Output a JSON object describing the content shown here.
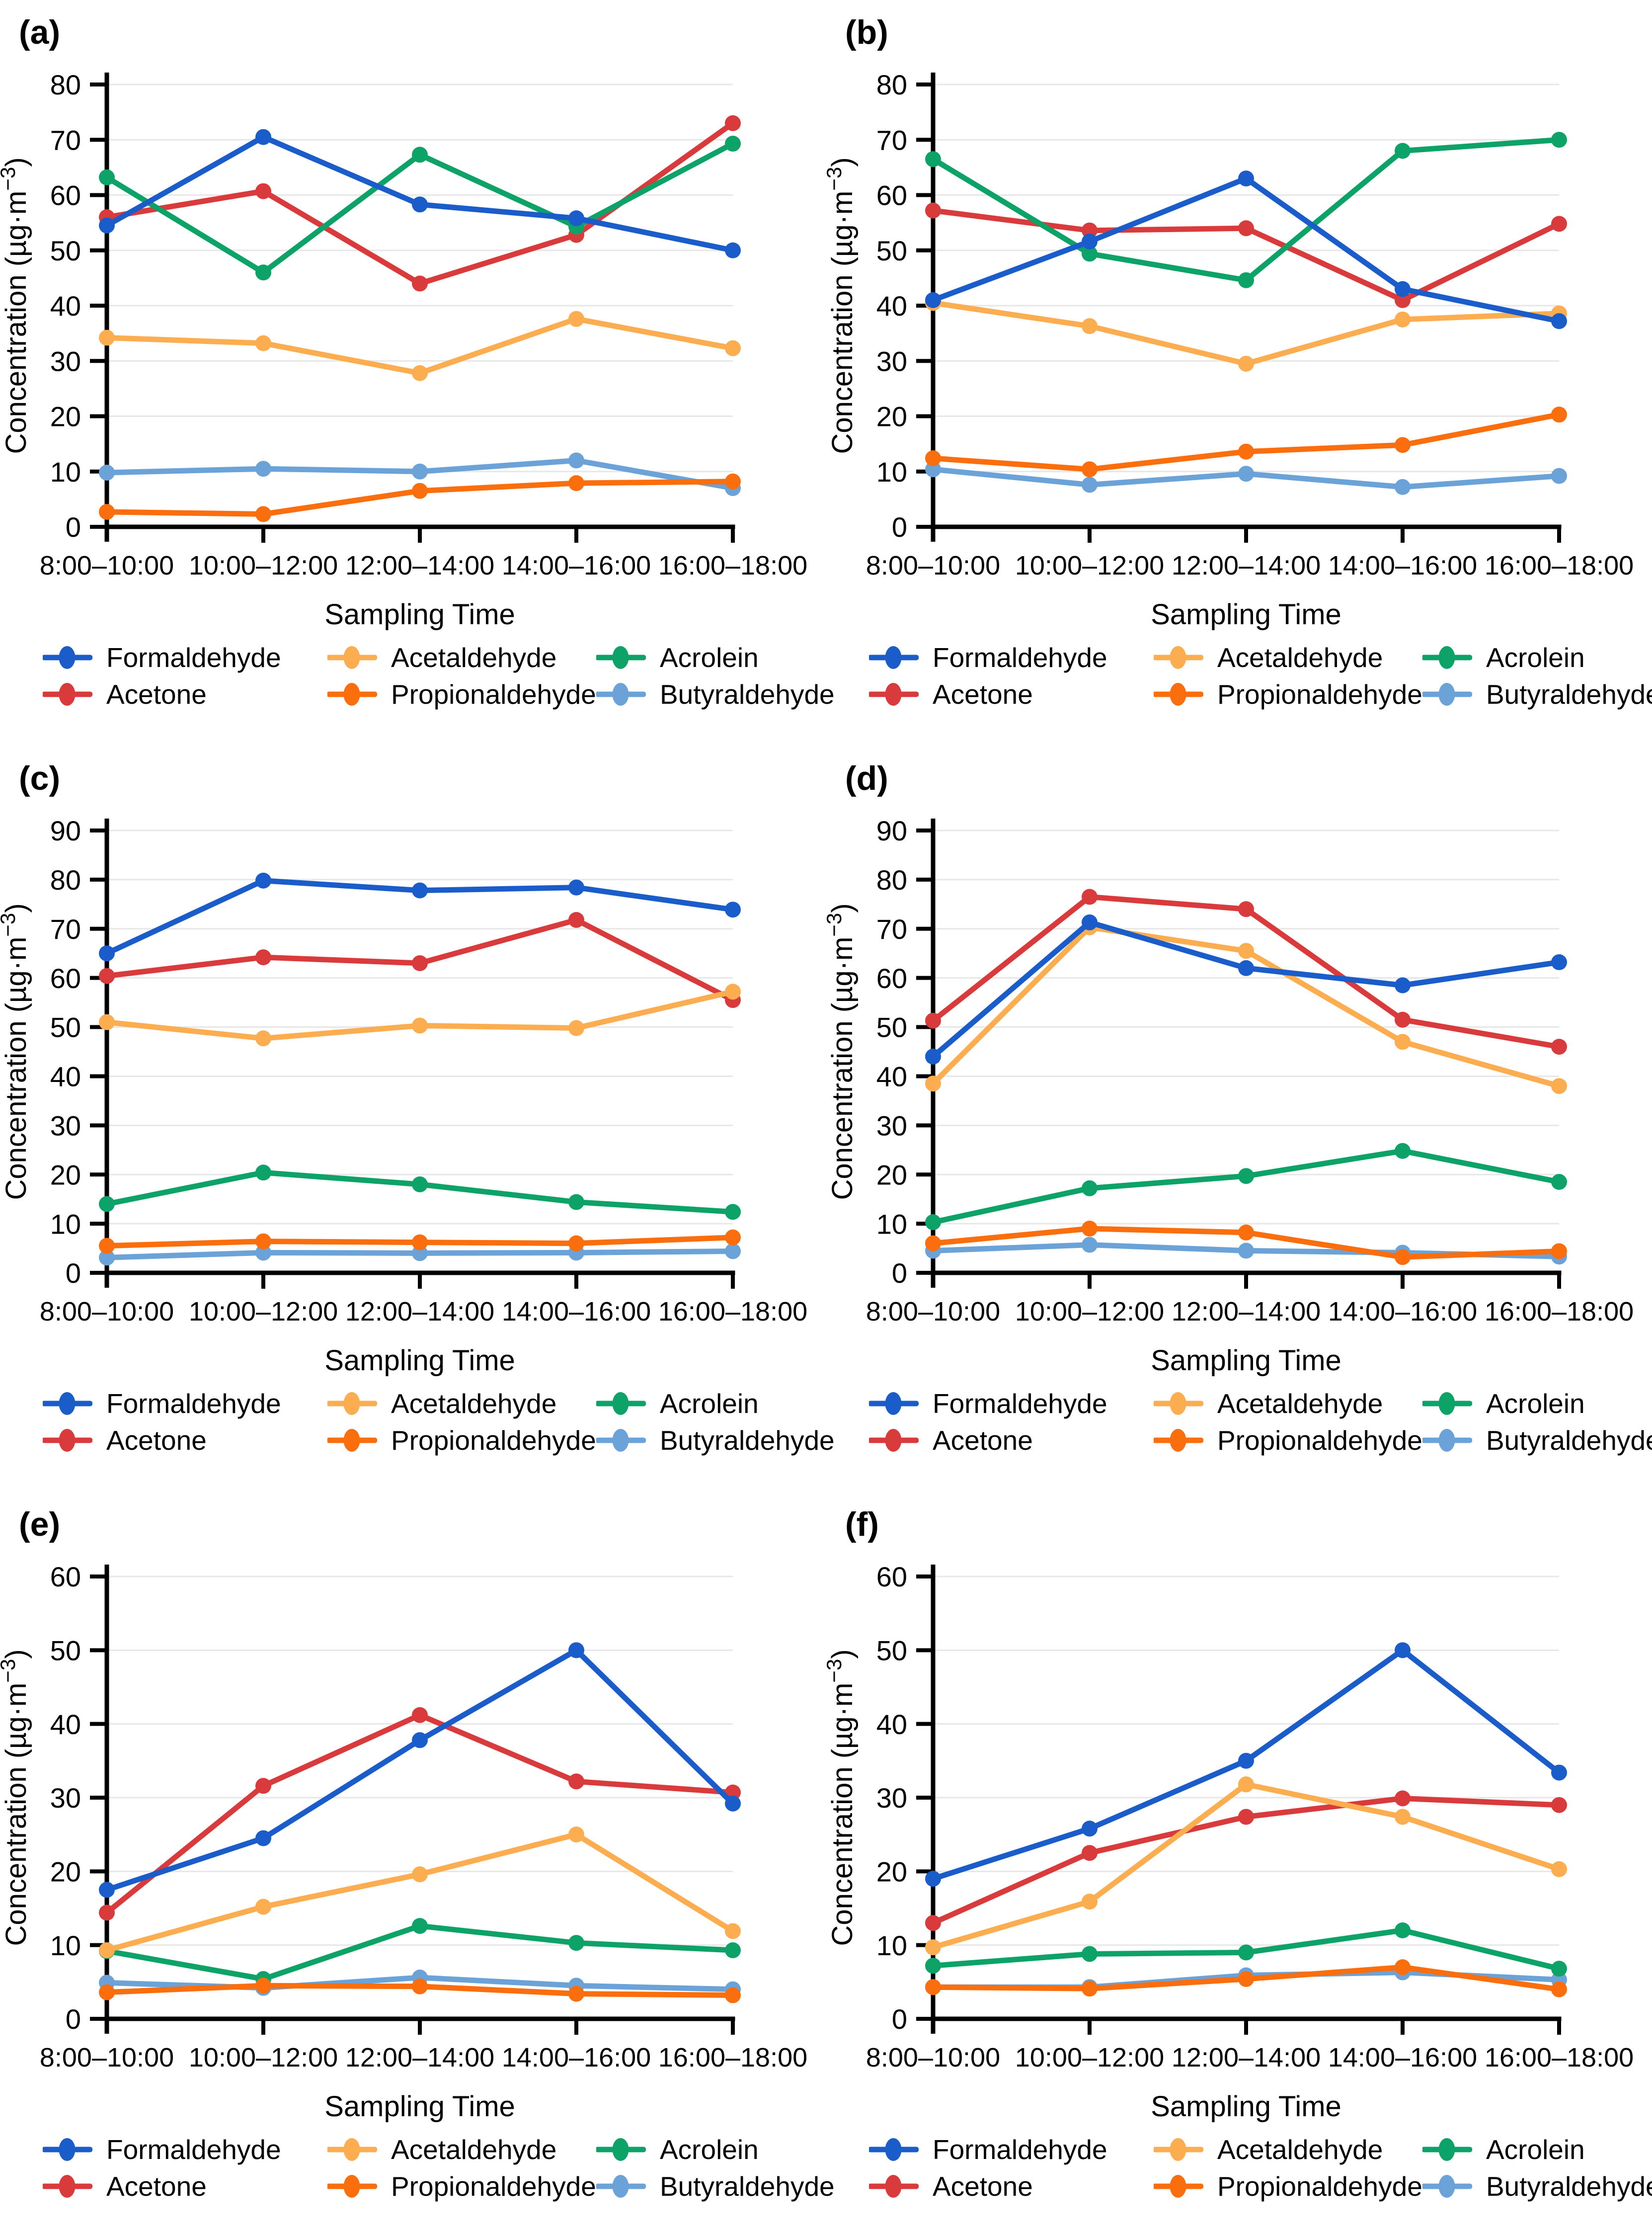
{
  "figure": {
    "background": "#ffffff",
    "x_axis_title": "Sampling Time",
    "y_axis_title": "Concentration (µg·m⁻³)",
    "y_axis_title_pre": "Concentration (µg·m",
    "y_axis_title_sup": "−3",
    "y_axis_title_post": ")",
    "legend_labels": [
      "Formaldehyde",
      "Acetaldehyde",
      "Acrolein",
      "Acetone",
      "Propionaldehyde",
      "Butyraldehyde"
    ],
    "colors": {
      "Formaldehyde": "#1A5CC9",
      "Acetaldehyde": "#FBAD50",
      "Acrolein": "#0DA368",
      "Acetone": "#D93B3C",
      "Propionaldehyde": "#FA6E0E",
      "Butyraldehyde": "#6BA3D9"
    },
    "grid_color": "#E7E7E7",
    "axis_color": "#000000",
    "draw_order": [
      "Butyraldehyde",
      "Acetone",
      "Acrolein",
      "Acetaldehyde",
      "Propionaldehyde",
      "Formaldehyde"
    ]
  },
  "chart_data": [
    {
      "type": "line",
      "panel_label": "(a)",
      "categories": [
        "8:00–10:00",
        "10:00–12:00",
        "12:00–14:00",
        "14:00–16:00",
        "16:00–18:00"
      ],
      "xlabel": "Sampling Time",
      "ylabel": "Concentration (µg·m⁻³)",
      "ylim": [
        0,
        80
      ],
      "ytick_step": 10,
      "grid": true,
      "legend_position": "bottom",
      "series": [
        {
          "name": "Formaldehyde",
          "values": [
            54.5,
            70.5,
            58.3,
            55.8,
            50.0
          ]
        },
        {
          "name": "Acetaldehyde",
          "values": [
            34.2,
            33.2,
            27.8,
            37.6,
            32.3
          ]
        },
        {
          "name": "Acrolein",
          "values": [
            63.2,
            46.0,
            67.3,
            54.3,
            69.3
          ]
        },
        {
          "name": "Acetone",
          "values": [
            56.0,
            60.7,
            44.0,
            52.8,
            73.0
          ]
        },
        {
          "name": "Propionaldehyde",
          "values": [
            2.7,
            2.3,
            6.5,
            7.9,
            8.2
          ]
        },
        {
          "name": "Butyraldehyde",
          "values": [
            9.8,
            10.5,
            10.0,
            12.0,
            7.0
          ]
        }
      ]
    },
    {
      "type": "line",
      "panel_label": "(b)",
      "categories": [
        "8:00–10:00",
        "10:00–12:00",
        "12:00–14:00",
        "14:00–16:00",
        "16:00–18:00"
      ],
      "xlabel": "Sampling Time",
      "ylabel": "Concentration (µg·m⁻³)",
      "ylim": [
        0,
        80
      ],
      "ytick_step": 10,
      "grid": true,
      "legend_position": "bottom",
      "series": [
        {
          "name": "Formaldehyde",
          "values": [
            41.0,
            51.6,
            63.0,
            43.0,
            37.2
          ]
        },
        {
          "name": "Acetaldehyde",
          "values": [
            40.5,
            36.3,
            29.5,
            37.5,
            38.6
          ]
        },
        {
          "name": "Acrolein",
          "values": [
            66.5,
            49.4,
            44.6,
            68.0,
            70.0
          ]
        },
        {
          "name": "Acetone",
          "values": [
            57.2,
            53.6,
            54.0,
            41.0,
            54.8
          ]
        },
        {
          "name": "Propionaldehyde",
          "values": [
            12.4,
            10.4,
            13.6,
            14.8,
            20.3
          ]
        },
        {
          "name": "Butyraldehyde",
          "values": [
            10.4,
            7.6,
            9.6,
            7.2,
            9.2
          ]
        }
      ]
    },
    {
      "type": "line",
      "panel_label": "(c)",
      "categories": [
        "8:00–10:00",
        "10:00–12:00",
        "12:00–14:00",
        "14:00–16:00",
        "16:00–18:00"
      ],
      "xlabel": "Sampling Time",
      "ylabel": "Concentration (µg·m⁻³)",
      "ylim": [
        0,
        90
      ],
      "ytick_step": 10,
      "grid": true,
      "legend_position": "bottom",
      "series": [
        {
          "name": "Formaldehyde",
          "values": [
            65.0,
            79.8,
            77.8,
            78.4,
            73.9
          ]
        },
        {
          "name": "Acetaldehyde",
          "values": [
            51.0,
            47.7,
            50.3,
            49.8,
            57.2
          ]
        },
        {
          "name": "Acrolein",
          "values": [
            14.0,
            20.4,
            18.0,
            14.4,
            12.4
          ]
        },
        {
          "name": "Acetone",
          "values": [
            60.4,
            64.2,
            63.0,
            71.8,
            55.5
          ]
        },
        {
          "name": "Propionaldehyde",
          "values": [
            5.5,
            6.4,
            6.2,
            6.0,
            7.2
          ]
        },
        {
          "name": "Butyraldehyde",
          "values": [
            3.1,
            4.1,
            4.0,
            4.1,
            4.4
          ]
        }
      ]
    },
    {
      "type": "line",
      "panel_label": "(d)",
      "categories": [
        "8:00–10:00",
        "10:00–12:00",
        "12:00–14:00",
        "14:00–16:00",
        "16:00–18:00"
      ],
      "xlabel": "Sampling Time",
      "ylabel": "Concentration (µg·m⁻³)",
      "ylim": [
        0,
        90
      ],
      "ytick_step": 10,
      "grid": true,
      "legend_position": "bottom",
      "series": [
        {
          "name": "Formaldehyde",
          "values": [
            44.0,
            71.3,
            62.0,
            58.5,
            63.2
          ]
        },
        {
          "name": "Acetaldehyde",
          "values": [
            38.5,
            70.3,
            65.5,
            47.0,
            38.0
          ]
        },
        {
          "name": "Acrolein",
          "values": [
            10.3,
            17.2,
            19.7,
            24.8,
            18.5
          ]
        },
        {
          "name": "Acetone",
          "values": [
            51.3,
            76.5,
            74.0,
            51.5,
            46.0
          ]
        },
        {
          "name": "Propionaldehyde",
          "values": [
            6.0,
            9.0,
            8.2,
            3.2,
            4.4
          ]
        },
        {
          "name": "Butyraldehyde",
          "values": [
            4.5,
            5.7,
            4.5,
            4.1,
            3.3
          ]
        }
      ]
    },
    {
      "type": "line",
      "panel_label": "(e)",
      "categories": [
        "8:00–10:00",
        "10:00–12:00",
        "12:00–14:00",
        "14:00–16:00",
        "16:00–18:00"
      ],
      "xlabel": "Sampling Time",
      "ylabel": "Concentration (µg·m⁻³)",
      "ylim": [
        0,
        60
      ],
      "ytick_step": 10,
      "grid": true,
      "legend_position": "bottom",
      "series": [
        {
          "name": "Formaldehyde",
          "values": [
            17.5,
            24.5,
            37.8,
            50.0,
            29.2
          ]
        },
        {
          "name": "Acetaldehyde",
          "values": [
            9.3,
            15.2,
            19.6,
            25.0,
            11.9
          ]
        },
        {
          "name": "Acrolein",
          "values": [
            9.2,
            5.4,
            12.6,
            10.3,
            9.3
          ]
        },
        {
          "name": "Acetone",
          "values": [
            14.4,
            31.6,
            41.2,
            32.2,
            30.7
          ]
        },
        {
          "name": "Propionaldehyde",
          "values": [
            3.6,
            4.5,
            4.4,
            3.4,
            3.2
          ]
        },
        {
          "name": "Butyraldehyde",
          "values": [
            4.9,
            4.2,
            5.6,
            4.5,
            4.0
          ]
        }
      ]
    },
    {
      "type": "line",
      "panel_label": "(f)",
      "categories": [
        "8:00–10:00",
        "10:00–12:00",
        "12:00–14:00",
        "14:00–16:00",
        "16:00–18:00"
      ],
      "xlabel": "Sampling Time",
      "ylabel": "Concentration (µg·m⁻³)",
      "ylim": [
        0,
        60
      ],
      "ytick_step": 10,
      "grid": true,
      "legend_position": "bottom",
      "series": [
        {
          "name": "Formaldehyde",
          "values": [
            19.0,
            25.8,
            35.0,
            50.0,
            33.4
          ]
        },
        {
          "name": "Acetaldehyde",
          "values": [
            9.7,
            15.9,
            31.8,
            27.4,
            20.3
          ]
        },
        {
          "name": "Acrolein",
          "values": [
            7.2,
            8.8,
            9.0,
            12.0,
            6.8
          ]
        },
        {
          "name": "Acetone",
          "values": [
            13.0,
            22.5,
            27.4,
            29.9,
            29.0
          ]
        },
        {
          "name": "Propionaldehyde",
          "values": [
            4.3,
            4.1,
            5.4,
            7.0,
            4.0
          ]
        },
        {
          "name": "Butyraldehyde",
          "values": [
            4.3,
            4.3,
            5.9,
            6.3,
            5.3
          ]
        }
      ]
    }
  ]
}
